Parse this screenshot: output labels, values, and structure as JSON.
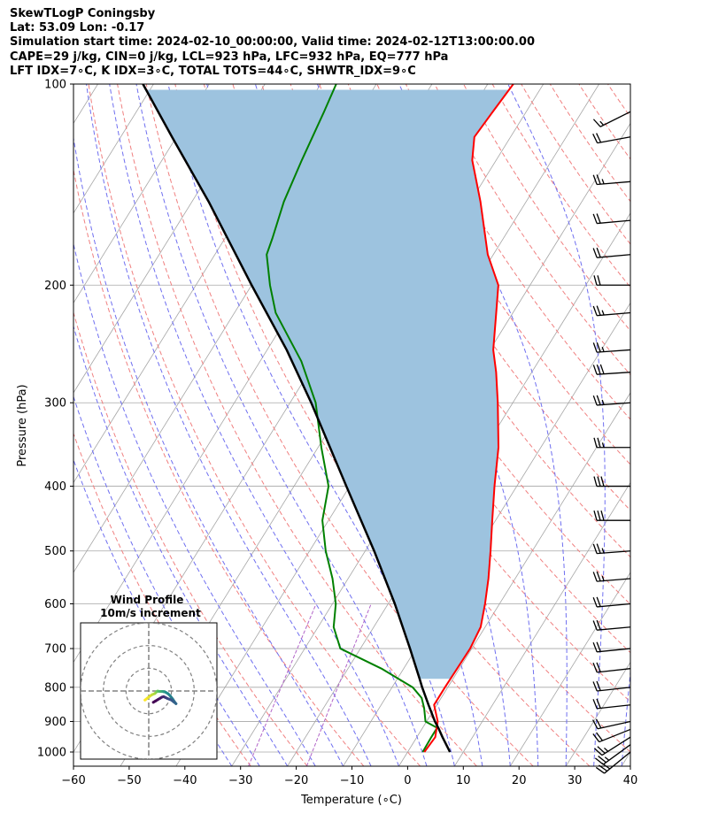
{
  "header": {
    "title": "SkewTLogP Coningsby",
    "location": "Lat: 53.09   Lon: -0.17",
    "times": "Simulation start time: 2024-02-10_00:00:00, Valid time: 2024-02-12T13:00:00.00",
    "indices1": "CAPE=29 j/kg, CIN=0 j/kg, LCL=923 hPa, LFC=932 hPa, EQ=777 hPa",
    "indices2": "LFT IDX=7∘C, K IDX=3∘C, TOTAL TOTS=44∘C, SHWTR_IDX=9∘C"
  },
  "chart_data": {
    "type": "skew-t log-p",
    "xlabel": "Temperature (∘C)",
    "ylabel": "Pressure (hPa)",
    "x_ticks": [
      -60,
      -50,
      -40,
      -30,
      -20,
      -10,
      0,
      10,
      20,
      30,
      40
    ],
    "x_tick_labels": [
      "−60",
      "−50",
      "−40",
      "−30",
      "−20",
      "−10",
      "0",
      "10",
      "20",
      "30",
      "40"
    ],
    "y_ticks": [
      1000,
      900,
      800,
      700,
      600,
      500,
      400,
      300,
      200,
      100
    ],
    "y_tick_labels": [
      "1000",
      "900",
      "800",
      "700",
      "600",
      "500",
      "400",
      "300",
      "200",
      "100"
    ],
    "xlim": [
      -60,
      40
    ],
    "ylim": [
      1050,
      100
    ],
    "grid": true,
    "skew_deg_per_log_unit": 32.3,
    "colors": {
      "temperature": "#ff0000",
      "dewpoint": "#008000",
      "parcel": "#000000",
      "cape_fill": "#9dc3df",
      "dry_adiabats": "#f08080",
      "moist_adiabats": "#6f6ff0",
      "mixing_ratio": "#b265c8",
      "isotherms": "#a6a6a6",
      "isobars": "#a6a6a6"
    },
    "series": [
      {
        "id": "temperature",
        "points": [
          [
            1000,
            3
          ],
          [
            950,
            3.3
          ],
          [
            900,
            2
          ],
          [
            850,
            -0.5
          ],
          [
            800,
            -0.5
          ],
          [
            750,
            -0.4
          ],
          [
            700,
            -0.3
          ],
          [
            650,
            -0.8
          ],
          [
            600,
            -2.6
          ],
          [
            550,
            -4.8
          ],
          [
            500,
            -7.5
          ],
          [
            450,
            -10.6
          ],
          [
            400,
            -14
          ],
          [
            350,
            -17.6
          ],
          [
            300,
            -22.7
          ],
          [
            270,
            -26.4
          ],
          [
            250,
            -29.4
          ],
          [
            220,
            -33
          ],
          [
            200,
            -35.7
          ],
          [
            180,
            -41
          ],
          [
            150,
            -48.2
          ],
          [
            130,
            -54.3
          ],
          [
            120,
            -56.5
          ],
          [
            110,
            -56
          ],
          [
            100,
            -55.4
          ]
        ]
      },
      {
        "id": "dewpoint",
        "points": [
          [
            1000,
            2.7
          ],
          [
            950,
            2.6
          ],
          [
            920,
            2.6
          ],
          [
            900,
            -0.2
          ],
          [
            860,
            -1.9
          ],
          [
            830,
            -3.5
          ],
          [
            800,
            -6.3
          ],
          [
            750,
            -14
          ],
          [
            700,
            -23.6
          ],
          [
            650,
            -27.2
          ],
          [
            600,
            -29.4
          ],
          [
            550,
            -32.8
          ],
          [
            500,
            -37.1
          ],
          [
            450,
            -41.1
          ],
          [
            400,
            -43.8
          ],
          [
            350,
            -49.4
          ],
          [
            300,
            -55.4
          ],
          [
            260,
            -62.6
          ],
          [
            240,
            -67.4
          ],
          [
            220,
            -72.6
          ],
          [
            200,
            -76.7
          ],
          [
            180,
            -80.7
          ],
          [
            170,
            -81.5
          ],
          [
            150,
            -83.5
          ],
          [
            130,
            -84.9
          ],
          [
            110,
            -86.3
          ],
          [
            100,
            -87.2
          ]
        ]
      },
      {
        "id": "parcel",
        "points": [
          [
            1000,
            7.6
          ],
          [
            950,
            4.6
          ],
          [
            923,
            3
          ],
          [
            900,
            1.5
          ],
          [
            850,
            -1.5
          ],
          [
            800,
            -4.6
          ],
          [
            777,
            -6
          ],
          [
            700,
            -11.1
          ],
          [
            600,
            -18.8
          ],
          [
            500,
            -28.4
          ],
          [
            400,
            -40.6
          ],
          [
            300,
            -56.2
          ],
          [
            250,
            -66.5
          ],
          [
            200,
            -80
          ],
          [
            150,
            -97
          ],
          [
            120,
            -110.8
          ],
          [
            100,
            -121.9
          ]
        ]
      }
    ],
    "wind_barbs": [
      {
        "p": 1000,
        "u": 11,
        "v": 9
      },
      {
        "p": 975,
        "u": 11,
        "v": 8
      },
      {
        "p": 950,
        "u": 11,
        "v": 7
      },
      {
        "p": 925,
        "u": 10,
        "v": 4
      },
      {
        "p": 900,
        "u": 9,
        "v": 2
      },
      {
        "p": 850,
        "u": 9,
        "v": 1
      },
      {
        "p": 800,
        "u": 9,
        "v": 1
      },
      {
        "p": 750,
        "u": 9,
        "v": 1
      },
      {
        "p": 700,
        "u": 10,
        "v": 1
      },
      {
        "p": 650,
        "u": 11,
        "v": 1
      },
      {
        "p": 600,
        "u": 11,
        "v": 1
      },
      {
        "p": 550,
        "u": 12,
        "v": 1
      },
      {
        "p": 500,
        "u": 13,
        "v": 1
      },
      {
        "p": 450,
        "u": 16,
        "v": 0
      },
      {
        "p": 400,
        "u": 15,
        "v": 0
      },
      {
        "p": 350,
        "u": 13,
        "v": 0
      },
      {
        "p": 300,
        "u": 14,
        "v": 1
      },
      {
        "p": 270,
        "u": 15,
        "v": 1
      },
      {
        "p": 250,
        "u": 14,
        "v": 1
      },
      {
        "p": 220,
        "u": 12,
        "v": 1
      },
      {
        "p": 200,
        "u": 11,
        "v": 0
      },
      {
        "p": 180,
        "u": 11,
        "v": 1
      },
      {
        "p": 160,
        "u": 11,
        "v": 1
      },
      {
        "p": 140,
        "u": 12,
        "v": 1
      },
      {
        "p": 120,
        "u": 11,
        "v": 2
      },
      {
        "p": 110,
        "u": 6,
        "v": 3
      }
    ],
    "hodograph": {
      "title": "Wind Profile",
      "subtitle": "10m/s increment",
      "rings_ms": [
        10,
        20,
        30
      ],
      "max_ms": 30,
      "colormap": [
        "#440154",
        "#3b528b",
        "#21918c",
        "#5ec962",
        "#fde725"
      ],
      "points": [
        [
          -1.7,
          -4
        ],
        [
          -0.4,
          -3
        ],
        [
          0.6,
          -2.2
        ],
        [
          1.5,
          -1.6
        ],
        [
          2.7,
          -1.1
        ],
        [
          3.2,
          -0.6
        ],
        [
          3.5,
          -0.3
        ],
        [
          3.8,
          -0.1
        ],
        [
          4.2,
          -0.1
        ],
        [
          4.5,
          -0.2
        ],
        [
          5,
          -0.2
        ],
        [
          5.5,
          -0.2
        ],
        [
          6,
          -0.2
        ],
        [
          6.5,
          -0.3
        ],
        [
          7,
          -0.4
        ],
        [
          7.5,
          -0.6
        ],
        [
          8.5,
          -1.2
        ],
        [
          9.5,
          -2.2
        ],
        [
          10.5,
          -3.5
        ],
        [
          11.5,
          -5
        ],
        [
          12,
          -5.6
        ],
        [
          11,
          -4.8
        ],
        [
          10,
          -4
        ],
        [
          9,
          -3.6
        ],
        [
          8,
          -3.2
        ],
        [
          7.2,
          -2.8
        ],
        [
          6.5,
          -2.5
        ],
        [
          5.8,
          -2.7
        ],
        [
          5,
          -3.2
        ],
        [
          4,
          -3.8
        ],
        [
          3,
          -4.4
        ],
        [
          2,
          -5
        ]
      ]
    }
  }
}
